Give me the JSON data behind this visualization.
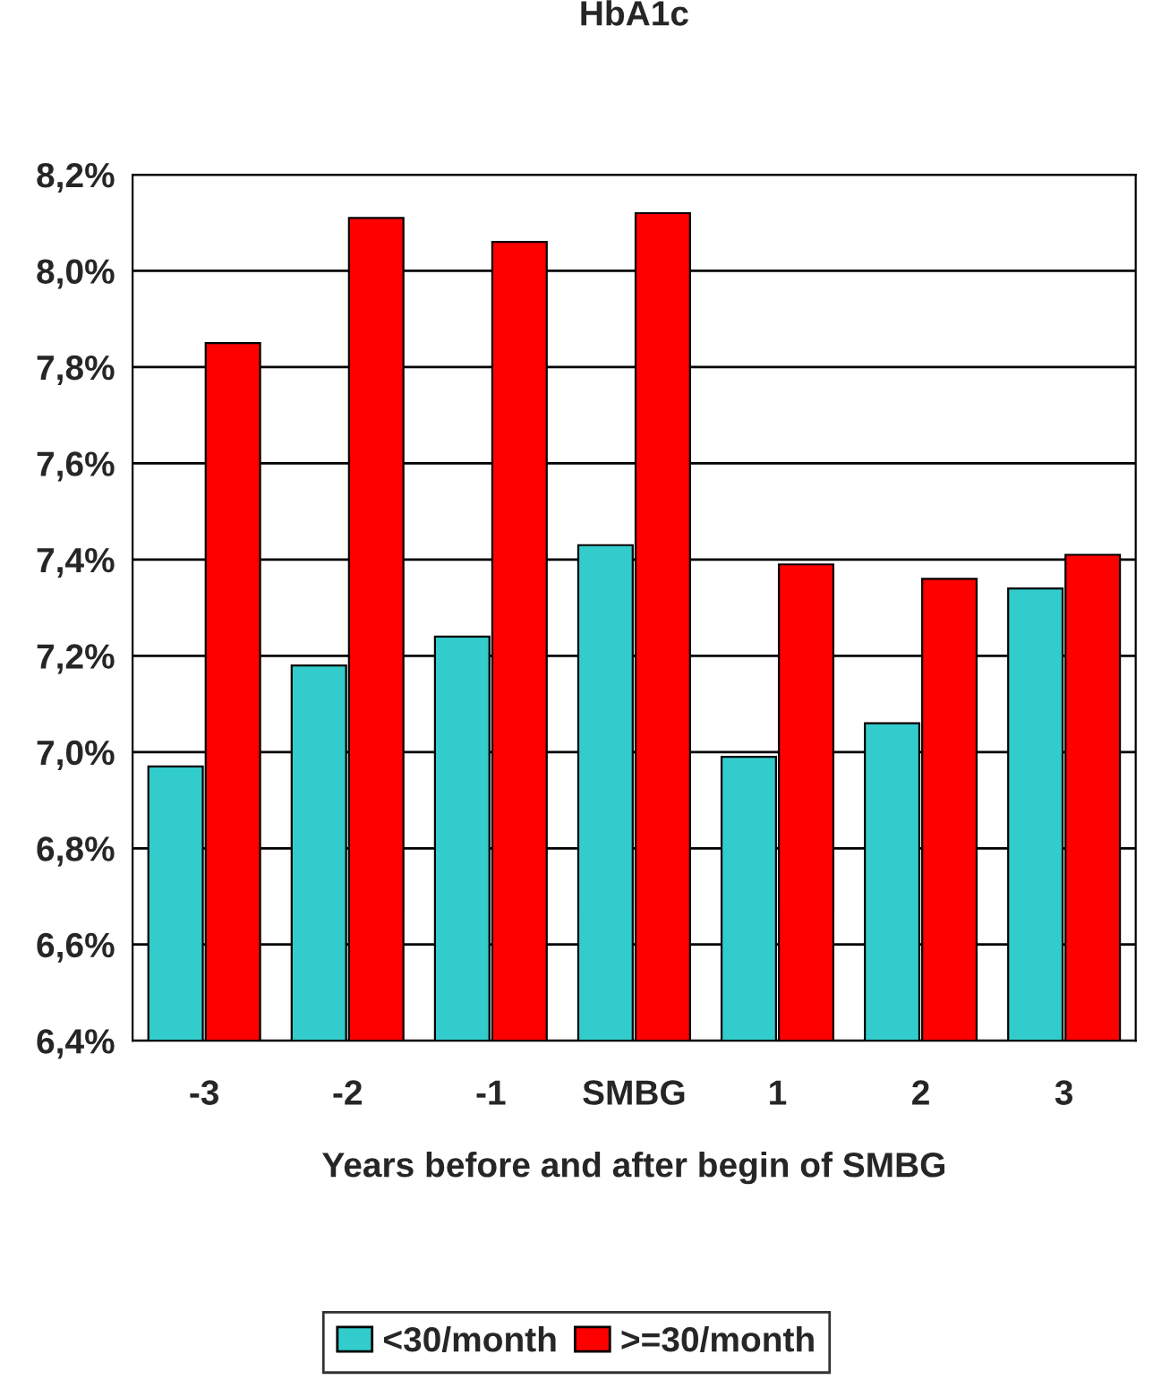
{
  "chart_data": {
    "type": "bar",
    "title": "HbA1c",
    "xlabel": "Years before and after begin of SMBG",
    "categories": [
      "-3",
      "-2",
      "-1",
      "SMBG",
      "1",
      "2",
      "3"
    ],
    "series": [
      {
        "name": "<30/month",
        "color": "#33cccc",
        "values": [
          6.97,
          7.18,
          7.24,
          7.43,
          6.99,
          7.06,
          7.34
        ]
      },
      {
        "name": ">=30/month",
        "color": "#ff0000",
        "values": [
          7.85,
          8.11,
          8.06,
          8.12,
          7.39,
          7.36,
          7.41
        ]
      }
    ],
    "ylim": [
      6.4,
      8.2
    ],
    "yticks": [
      {
        "value": 6.4,
        "label": "6,4%"
      },
      {
        "value": 6.6,
        "label": "6,6%"
      },
      {
        "value": 6.8,
        "label": "6,8%"
      },
      {
        "value": 7.0,
        "label": "7,0%"
      },
      {
        "value": 7.2,
        "label": "7,2%"
      },
      {
        "value": 7.4,
        "label": "7,4%"
      },
      {
        "value": 7.6,
        "label": "7,6%"
      },
      {
        "value": 7.8,
        "label": "7,8%"
      },
      {
        "value": 8.0,
        "label": "8,0%"
      },
      {
        "value": 8.2,
        "label": "8,2%"
      }
    ],
    "grid": "y",
    "legend": "bottom"
  }
}
